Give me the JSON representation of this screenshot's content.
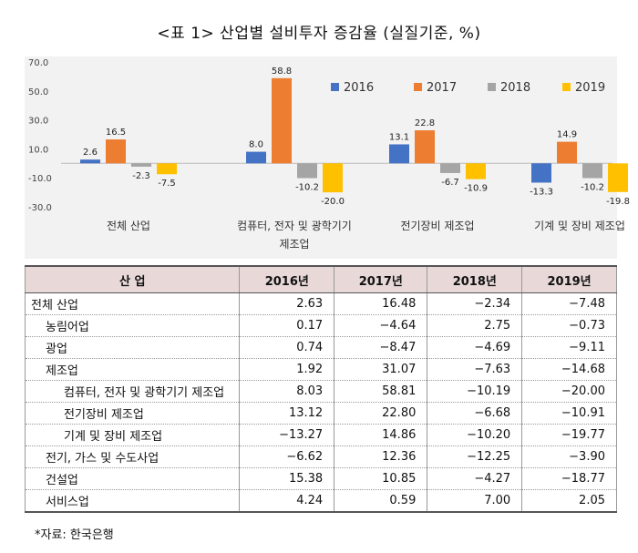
{
  "title": "<표 1> 산업별 설비투자 증감율 (실질기준, %)",
  "source": "*자료: 한국은행",
  "chart_data": {
    "type": "bar",
    "categories": [
      [
        "전체 산업"
      ],
      [
        "컴퓨터, 전자 및 광학기기",
        "제조업"
      ],
      [
        "전기장비 제조업"
      ],
      [
        "기계 및 장비 제조업"
      ]
    ],
    "series": [
      {
        "name": "2016",
        "color": "#4472c4",
        "values": [
          2.6,
          8.0,
          13.1,
          -13.3
        ],
        "labels": [
          "2.6",
          "8.0",
          "13.1",
          "-13.3"
        ]
      },
      {
        "name": "2017",
        "color": "#ed7d31",
        "values": [
          16.5,
          58.8,
          22.8,
          14.9
        ],
        "labels": [
          "16.5",
          "58.8",
          "22.8",
          "14.9"
        ]
      },
      {
        "name": "2018",
        "color": "#a5a5a5",
        "values": [
          -2.3,
          -10.2,
          -6.7,
          -10.2
        ],
        "labels": [
          "-2.3",
          "-10.2",
          "-6.7",
          "-10.2"
        ]
      },
      {
        "name": "2019",
        "color": "#ffc000",
        "values": [
          -7.5,
          -20.0,
          -10.9,
          -19.8
        ],
        "labels": [
          "-7.5",
          "-20.0",
          "-10.9",
          "-19.8"
        ]
      }
    ],
    "ylim": [
      -30,
      70
    ],
    "yticks": [
      -30,
      -10,
      10,
      30,
      50,
      70
    ],
    "ytick_labels": [
      "-30.0",
      "-10.0",
      "10.0",
      "30.0",
      "50.0",
      "70.0"
    ],
    "legend": "top-right",
    "grid": false
  },
  "table": {
    "headers": [
      "산 업",
      "2016년",
      "2017년",
      "2018년",
      "2019년"
    ],
    "rows": [
      {
        "label": "전체 산업",
        "level": 0,
        "values": [
          "2.63",
          "16.48",
          "−2.34",
          "−7.48"
        ]
      },
      {
        "label": "농림어업",
        "level": 1,
        "values": [
          "0.17",
          "−4.64",
          "2.75",
          "−0.73"
        ]
      },
      {
        "label": "광업",
        "level": 1,
        "values": [
          "0.74",
          "−8.47",
          "−4.69",
          "−9.11"
        ]
      },
      {
        "label": "제조업",
        "level": 1,
        "values": [
          "1.92",
          "31.07",
          "−7.63",
          "−14.68"
        ]
      },
      {
        "label": "컴퓨터, 전자 및 광학기기 제조업",
        "level": 2,
        "values": [
          "8.03",
          "58.81",
          "−10.19",
          "−20.00"
        ]
      },
      {
        "label": "전기장비 제조업",
        "level": 2,
        "values": [
          "13.12",
          "22.80",
          "−6.68",
          "−10.91"
        ]
      },
      {
        "label": "기계 및 장비 제조업",
        "level": 2,
        "values": [
          "−13.27",
          "14.86",
          "−10.20",
          "−19.77"
        ]
      },
      {
        "label": "전기, 가스 및 수도사업",
        "level": 1,
        "values": [
          "−6.62",
          "12.36",
          "−12.25",
          "−3.90"
        ]
      },
      {
        "label": "건설업",
        "level": 1,
        "values": [
          "15.38",
          "10.85",
          "−4.27",
          "−18.77"
        ]
      },
      {
        "label": "서비스업",
        "level": 1,
        "values": [
          "4.24",
          "0.59",
          "7.00",
          "2.05"
        ]
      }
    ]
  }
}
